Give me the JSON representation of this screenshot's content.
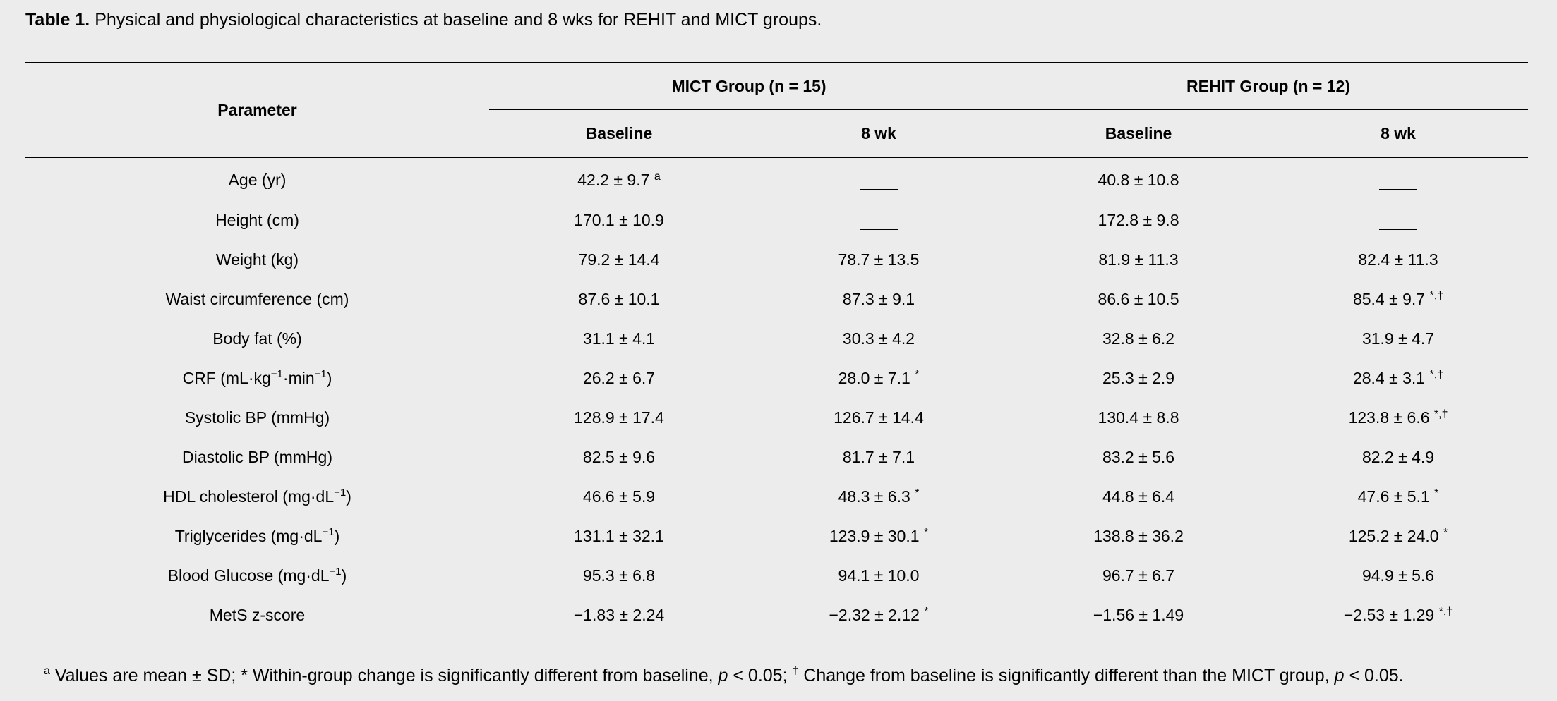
{
  "caption": {
    "label": "Table 1.",
    "text": "Physical and physiological characteristics at baseline and 8 wks for REHIT and MICT groups."
  },
  "table": {
    "param_header": "Parameter",
    "groups": [
      "MICT Group (n = 15)",
      "REHIT Group (n = 12)"
    ],
    "subheaders": [
      "Baseline",
      "8 wk",
      "Baseline",
      "8 wk"
    ],
    "rows": [
      {
        "param": "Age (yr)",
        "param_sup": "",
        "param_tail": "",
        "values": [
          "42.2 ± 9.7",
          "",
          "40.8 ± 10.8",
          ""
        ],
        "marks": [
          "a",
          "",
          "",
          ""
        ],
        "dash": [
          false,
          true,
          false,
          true
        ]
      },
      {
        "param": "Height (cm)",
        "param_sup": "",
        "param_tail": "",
        "values": [
          "170.1 ± 10.9",
          "",
          "172.8 ± 9.8",
          ""
        ],
        "marks": [
          "",
          "",
          "",
          ""
        ],
        "dash": [
          false,
          true,
          false,
          true
        ]
      },
      {
        "param": "Weight (kg)",
        "param_sup": "",
        "param_tail": "",
        "values": [
          "79.2 ± 14.4",
          "78.7 ± 13.5",
          "81.9 ± 11.3",
          "82.4 ± 11.3"
        ],
        "marks": [
          "",
          "",
          "",
          ""
        ],
        "dash": [
          false,
          false,
          false,
          false
        ]
      },
      {
        "param": "Waist circumference (cm)",
        "param_sup": "",
        "param_tail": "",
        "values": [
          "87.6 ± 10.1",
          "87.3 ± 9.1",
          "86.6 ± 10.5",
          "85.4 ± 9.7"
        ],
        "marks": [
          "",
          "",
          "",
          "*,†"
        ],
        "dash": [
          false,
          false,
          false,
          false
        ]
      },
      {
        "param": "Body fat (%)",
        "param_sup": "",
        "param_tail": "",
        "values": [
          "31.1 ± 4.1",
          "30.3 ± 4.2",
          "32.8 ± 6.2",
          "31.9 ± 4.7"
        ],
        "marks": [
          "",
          "",
          "",
          ""
        ],
        "dash": [
          false,
          false,
          false,
          false
        ]
      },
      {
        "param": "CRF (mL·kg",
        "param_sup": "−1",
        "param_mid": "·min",
        "param_sup2": "−1",
        "param_tail": ")",
        "values": [
          "26.2 ± 6.7",
          "28.0 ± 7.1",
          "25.3 ± 2.9",
          "28.4 ± 3.1"
        ],
        "marks": [
          "",
          "*",
          "",
          "*,†"
        ],
        "dash": [
          false,
          false,
          false,
          false
        ]
      },
      {
        "param": "Systolic BP (mmHg)",
        "param_sup": "",
        "param_tail": "",
        "values": [
          "128.9 ± 17.4",
          "126.7 ± 14.4",
          "130.4 ± 8.8",
          "123.8 ± 6.6"
        ],
        "marks": [
          "",
          "",
          "",
          "*,†"
        ],
        "dash": [
          false,
          false,
          false,
          false
        ]
      },
      {
        "param": "Diastolic BP (mmHg)",
        "param_sup": "",
        "param_tail": "",
        "values": [
          "82.5 ± 9.6",
          "81.7 ± 7.1",
          "83.2 ± 5.6",
          "82.2 ± 4.9"
        ],
        "marks": [
          "",
          "",
          "",
          ""
        ],
        "dash": [
          false,
          false,
          false,
          false
        ]
      },
      {
        "param": "HDL cholesterol (mg·dL",
        "param_sup": "−1",
        "param_tail": ")",
        "values": [
          "46.6 ± 5.9",
          "48.3 ± 6.3",
          "44.8 ± 6.4",
          "47.6 ± 5.1"
        ],
        "marks": [
          "",
          "*",
          "",
          "*"
        ],
        "dash": [
          false,
          false,
          false,
          false
        ]
      },
      {
        "param": "Triglycerides (mg·dL",
        "param_sup": "−1",
        "param_tail": ")",
        "values": [
          "131.1 ± 32.1",
          "123.9 ± 30.1",
          "138.8 ± 36.2",
          "125.2 ± 24.0"
        ],
        "marks": [
          "",
          "*",
          "",
          "*"
        ],
        "dash": [
          false,
          false,
          false,
          false
        ]
      },
      {
        "param": "Blood Glucose (mg·dL",
        "param_sup": "−1",
        "param_tail": ")",
        "values": [
          "95.3 ± 6.8",
          "94.1 ± 10.0",
          "96.7 ± 6.7",
          "94.9 ± 5.6"
        ],
        "marks": [
          "",
          "",
          "",
          ""
        ],
        "dash": [
          false,
          false,
          false,
          false
        ]
      },
      {
        "param": "MetS z-score",
        "param_sup": "",
        "param_tail": "",
        "values": [
          "−1.83 ± 2.24",
          "−2.32 ± 2.12",
          "−1.56 ± 1.49",
          "−2.53 ± 1.29"
        ],
        "marks": [
          "",
          "*",
          "",
          "*,†"
        ],
        "dash": [
          false,
          false,
          false,
          false
        ]
      }
    ]
  },
  "footnote": {
    "sup_a": "a",
    "part1": " Values are mean ± SD; * Within-group change is significantly different from baseline, ",
    "p1": "p",
    "part2": " < 0.05; ",
    "dagger": "†",
    "part3": " Change from baseline is significantly different than the MICT group, ",
    "p2": "p",
    "part4": " < 0.05."
  }
}
